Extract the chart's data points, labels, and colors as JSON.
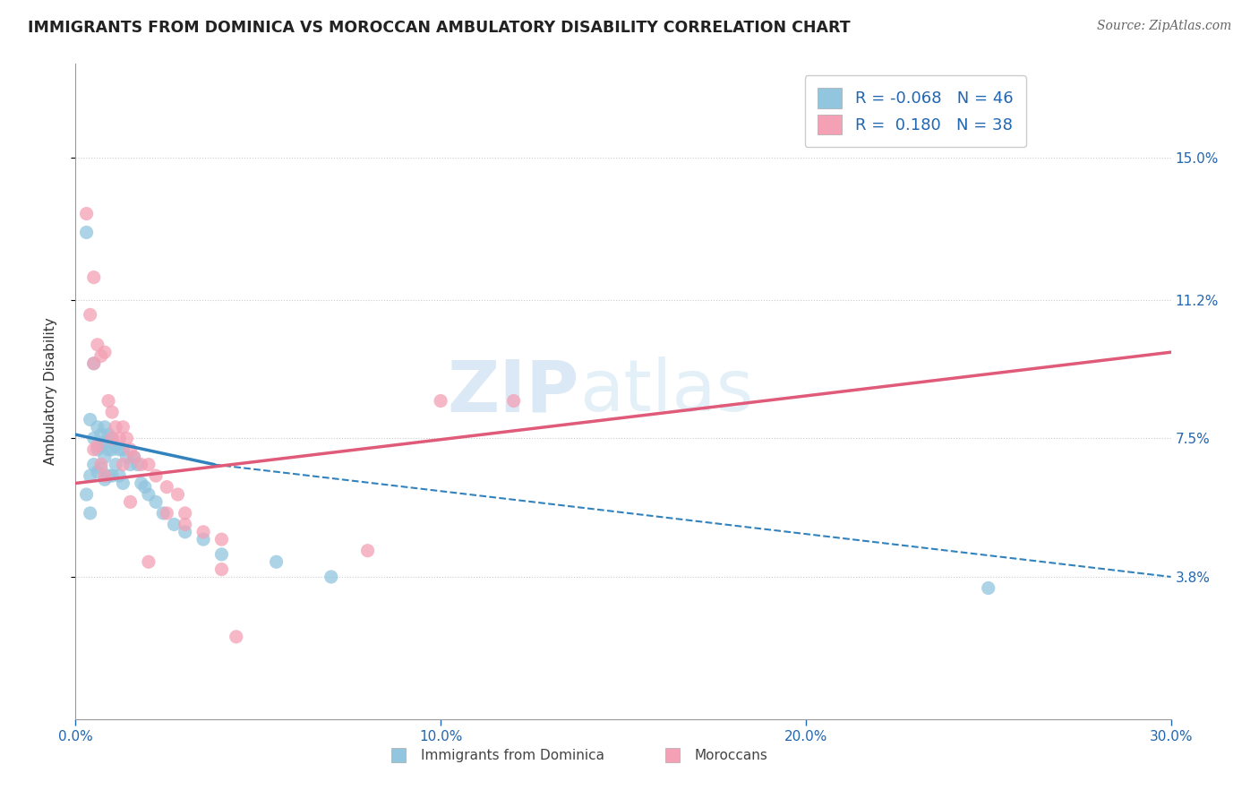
{
  "title": "IMMIGRANTS FROM DOMINICA VS MOROCCAN AMBULATORY DISABILITY CORRELATION CHART",
  "source": "Source: ZipAtlas.com",
  "ylabel": "Ambulatory Disability",
  "xlim": [
    0.0,
    0.3
  ],
  "ylim": [
    0.0,
    0.175
  ],
  "yticks": [
    0.038,
    0.075,
    0.112,
    0.15
  ],
  "ytick_labels": [
    "3.8%",
    "7.5%",
    "11.2%",
    "15.0%"
  ],
  "xticks": [
    0.0,
    0.1,
    0.2,
    0.3
  ],
  "xtick_labels": [
    "0.0%",
    "10.0%",
    "20.0%",
    "30.0%"
  ],
  "r_blue": -0.068,
  "n_blue": 46,
  "r_pink": 0.18,
  "n_pink": 38,
  "blue_color": "#92c5de",
  "pink_color": "#f4a0b5",
  "blue_line_color": "#3182bd",
  "pink_line_color": "#e05a7a",
  "legend_blue_label": "Immigrants from Dominica",
  "legend_pink_label": "Moroccans",
  "watermark_zip": "ZIP",
  "watermark_atlas": "atlas",
  "blue_points_x": [
    0.003,
    0.004,
    0.004,
    0.005,
    0.005,
    0.005,
    0.006,
    0.006,
    0.006,
    0.007,
    0.007,
    0.007,
    0.008,
    0.008,
    0.008,
    0.008,
    0.009,
    0.009,
    0.009,
    0.01,
    0.01,
    0.01,
    0.011,
    0.011,
    0.012,
    0.012,
    0.013,
    0.013,
    0.014,
    0.015,
    0.016,
    0.017,
    0.018,
    0.019,
    0.02,
    0.022,
    0.024,
    0.027,
    0.03,
    0.035,
    0.04,
    0.055,
    0.07,
    0.25,
    0.003,
    0.004
  ],
  "blue_points_y": [
    0.13,
    0.08,
    0.065,
    0.095,
    0.075,
    0.068,
    0.078,
    0.072,
    0.066,
    0.076,
    0.073,
    0.067,
    0.078,
    0.074,
    0.07,
    0.064,
    0.076,
    0.072,
    0.065,
    0.075,
    0.072,
    0.065,
    0.073,
    0.068,
    0.072,
    0.065,
    0.072,
    0.063,
    0.07,
    0.068,
    0.07,
    0.068,
    0.063,
    0.062,
    0.06,
    0.058,
    0.055,
    0.052,
    0.05,
    0.048,
    0.044,
    0.042,
    0.038,
    0.035,
    0.06,
    0.055
  ],
  "pink_points_x": [
    0.003,
    0.004,
    0.005,
    0.005,
    0.006,
    0.007,
    0.008,
    0.009,
    0.01,
    0.01,
    0.011,
    0.012,
    0.013,
    0.013,
    0.014,
    0.015,
    0.016,
    0.018,
    0.02,
    0.022,
    0.025,
    0.028,
    0.03,
    0.035,
    0.04,
    0.044,
    0.12,
    0.005,
    0.006,
    0.007,
    0.008,
    0.1,
    0.08,
    0.04,
    0.02,
    0.025,
    0.015,
    0.03
  ],
  "pink_points_y": [
    0.135,
    0.108,
    0.118,
    0.095,
    0.1,
    0.097,
    0.098,
    0.085,
    0.082,
    0.075,
    0.078,
    0.075,
    0.078,
    0.068,
    0.075,
    0.072,
    0.07,
    0.068,
    0.068,
    0.065,
    0.062,
    0.06,
    0.055,
    0.05,
    0.048,
    0.022,
    0.085,
    0.072,
    0.073,
    0.068,
    0.065,
    0.085,
    0.045,
    0.04,
    0.042,
    0.055,
    0.058,
    0.052
  ],
  "blue_line_x_start": 0.0,
  "blue_line_x_solid_end": 0.038,
  "blue_line_x_end": 0.3,
  "blue_line_y_start": 0.076,
  "blue_line_y_solid_end": 0.068,
  "blue_line_y_end": 0.038,
  "pink_line_x_start": 0.0,
  "pink_line_x_end": 0.3,
  "pink_line_y_start": 0.063,
  "pink_line_y_end": 0.098
}
